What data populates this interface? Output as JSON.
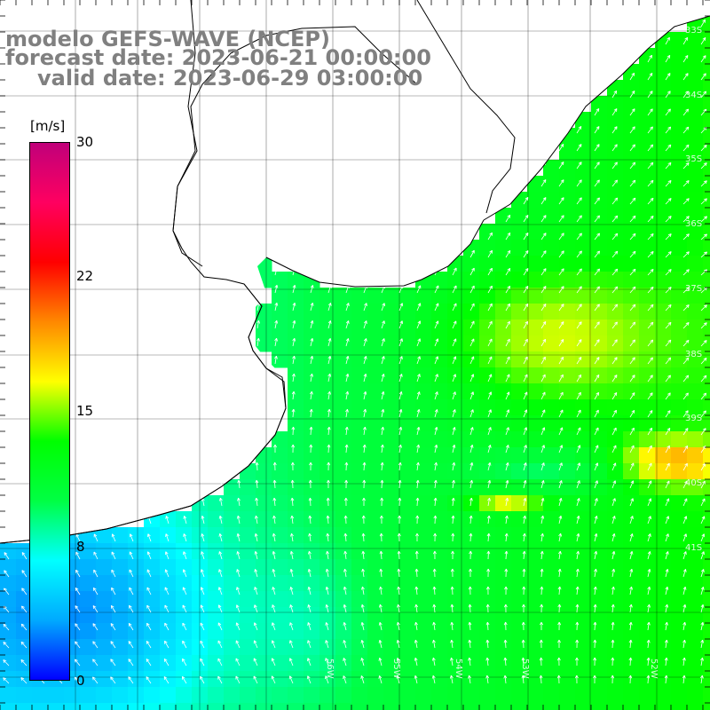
{
  "title": {
    "line1": "modelo GEFS-WAVE (NCEP)",
    "line2": "forecast date: 2023-06-21 00:00:00",
    "line3": "valid date: 2023-06-29 03:00:00"
  },
  "colorbar": {
    "unit": "[m/s]",
    "ticks": [
      "30",
      "22",
      "15",
      "8",
      "0"
    ],
    "min": 0,
    "max": 30,
    "stops": [
      "#0000ff",
      "#00aaff",
      "#00ffff",
      "#00ff44",
      "#00ff00",
      "#ffff00",
      "#ff8800",
      "#ff0000",
      "#ff0060",
      "#c0007a"
    ]
  },
  "map": {
    "land_color": "#ffffff",
    "grid": true,
    "lat_labels": [
      "33S",
      "34S",
      "35S",
      "36S",
      "37S",
      "38S",
      "39S",
      "40S",
      "41S"
    ],
    "lon_labels": [
      "56W",
      "55W",
      "54W",
      "53W",
      "52W"
    ]
  }
}
